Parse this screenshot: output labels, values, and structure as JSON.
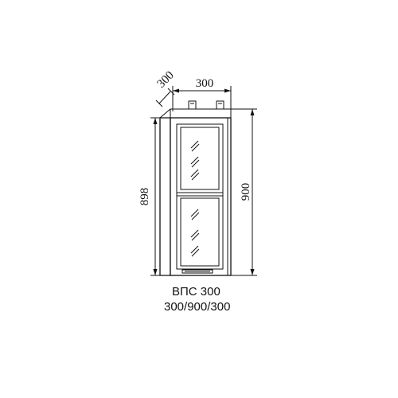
{
  "dimensions": {
    "depth": "300",
    "width": "300",
    "height_front": "898",
    "height_side": "900"
  },
  "caption": {
    "model": "ВПС 300",
    "size": "300/900/300"
  }
}
